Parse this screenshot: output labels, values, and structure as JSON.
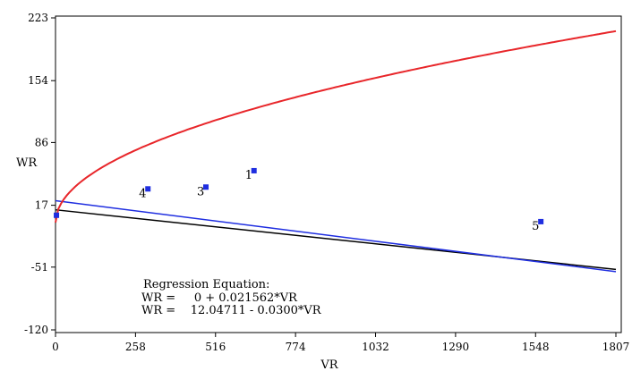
{
  "chart_data": {
    "type": "scatter",
    "xlabel": "VR",
    "ylabel": "WR",
    "xlim": [
      0,
      1807
    ],
    "ylim": [
      -120,
      223
    ],
    "x_ticks": [
      "0",
      "258",
      "516",
      "774",
      "1032",
      "1290",
      "1548",
      "1807"
    ],
    "y_ticks": [
      "223",
      "154",
      "86",
      "17",
      "-51",
      "-120"
    ],
    "points": [
      {
        "label": "",
        "x": 3,
        "y": 6
      },
      {
        "label": "4",
        "x": 298,
        "y": 35
      },
      {
        "label": "3",
        "x": 485,
        "y": 37
      },
      {
        "label": "1",
        "x": 640,
        "y": 55
      },
      {
        "label": "5",
        "x": 1565,
        "y": -1
      }
    ],
    "equation_title": "Regression Equation:",
    "equations": [
      "WR =     0 + 0.021562*VR",
      "WR =    12.04711 - 0.0300*VR"
    ],
    "colors": {
      "curve": "#e8262a",
      "fit_line_1": "#1f2ee0",
      "fit_line_2": "#000000",
      "points": "#1f2ee0"
    }
  }
}
